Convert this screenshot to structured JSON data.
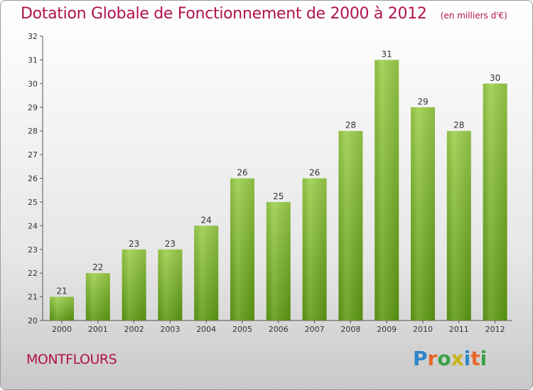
{
  "header": {
    "title": "Dotation Globale de Fonctionnement de 2000 à 2012",
    "unit": "(en milliers d'€)"
  },
  "footer": {
    "commune": "MONTFLOURS",
    "logo_text": "Proxiti",
    "logo_colors": [
      "#2e86c8",
      "#e8652a",
      "#3aa14a",
      "#c9b411",
      "#2e86c8",
      "#e8652a",
      "#3aa14a"
    ]
  },
  "colors": {
    "title": "#b0124f",
    "bar_top": "#9ccf4b",
    "bar_bottom": "#5e9a14",
    "axis": "#555555",
    "label": "#333333"
  },
  "chart_data": {
    "type": "bar",
    "categories": [
      "2000",
      "2001",
      "2002",
      "2003",
      "2004",
      "2005",
      "2006",
      "2007",
      "2008",
      "2009",
      "2010",
      "2011",
      "2012"
    ],
    "values": [
      21,
      22,
      23,
      23,
      24,
      26,
      25,
      26,
      28,
      31,
      29,
      28,
      30
    ],
    "data_labels": [
      "21",
      "22",
      "23",
      "23",
      "24",
      "26",
      "25",
      "26",
      "28",
      "31",
      "29",
      "28",
      "30"
    ],
    "ylim": [
      20,
      32
    ],
    "yticks": [
      "20",
      "21",
      "22",
      "23",
      "24",
      "25",
      "26",
      "27",
      "28",
      "29",
      "30",
      "31",
      "32"
    ],
    "title": "Dotation Globale de Fonctionnement de 2000 à 2012",
    "xlabel": "",
    "ylabel": "",
    "grid": false,
    "legend": "none"
  }
}
